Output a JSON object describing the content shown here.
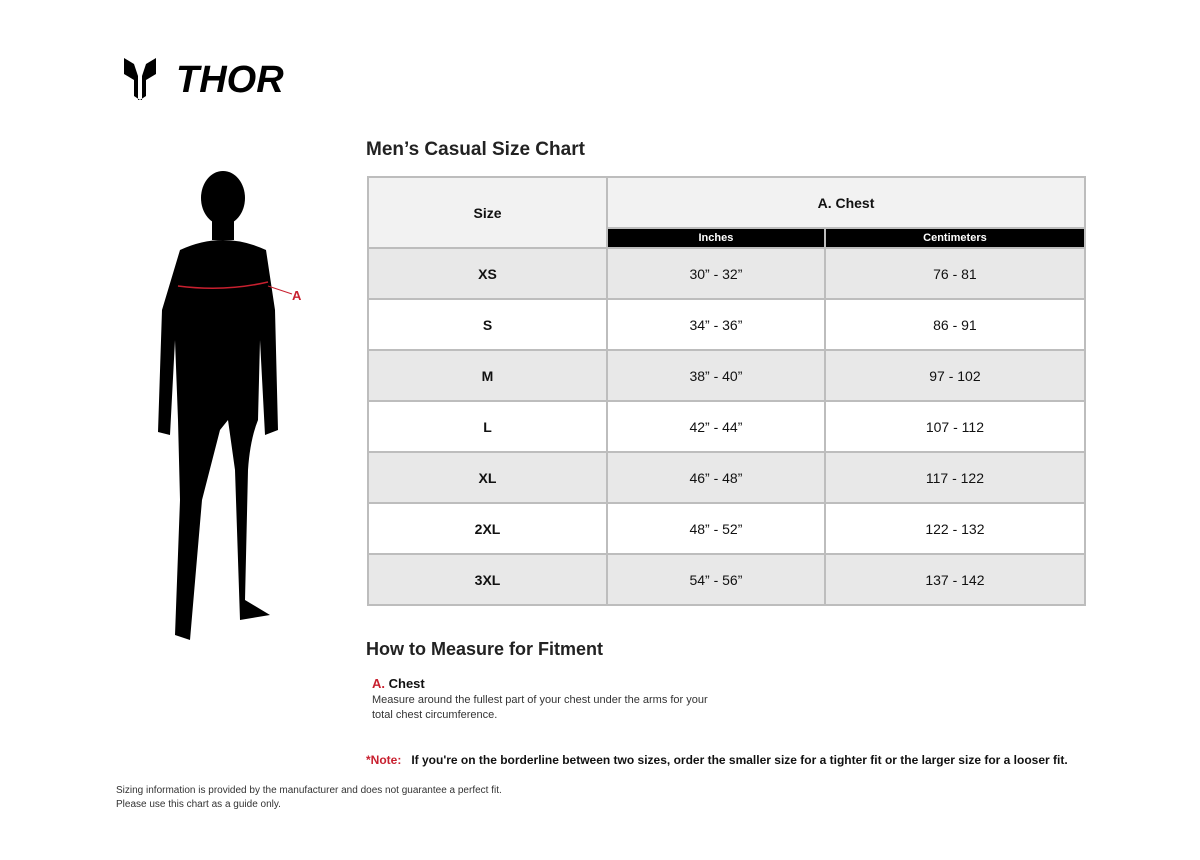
{
  "brand": {
    "name": "THOR"
  },
  "title": "Men’s Casual Size Chart",
  "table": {
    "size_header": "Size",
    "group_header": "A. Chest",
    "sub_headers": [
      "Inches",
      "Centimeters"
    ],
    "rows": [
      {
        "size": "XS",
        "inches": "30” - 32”",
        "cm": "76 - 81"
      },
      {
        "size": "S",
        "inches": "34” - 36”",
        "cm": "86 - 91"
      },
      {
        "size": "M",
        "inches": "38” - 40”",
        "cm": "97 - 102"
      },
      {
        "size": "L",
        "inches": "42” - 44”",
        "cm": "107 - 112"
      },
      {
        "size": "XL",
        "inches": "46” - 48”",
        "cm": "117 - 122"
      },
      {
        "size": "2XL",
        "inches": "48” - 52”",
        "cm": "122 - 132"
      },
      {
        "size": "3XL",
        "inches": "54” - 56”",
        "cm": "137 - 142"
      }
    ]
  },
  "figure": {
    "marker": "A"
  },
  "howto": {
    "title": "How to Measure for Fitment",
    "letter": "A.",
    "label": "Chest",
    "description": "Measure around the fullest part of your chest under the arms for your total chest circumference."
  },
  "note": {
    "label": "*Note:",
    "text": "If you're on the borderline between two sizes, order the smaller size for a tighter fit or the larger size for a looser fit."
  },
  "disclaimer": {
    "line1": "Sizing information is provided by the manufacturer and does not guarantee a perfect fit.",
    "line2": "Please use this chart as a guide only."
  },
  "colors": {
    "accent": "#c8202f",
    "header_bg": "#000000",
    "row_alt": "#e8e8e8"
  }
}
